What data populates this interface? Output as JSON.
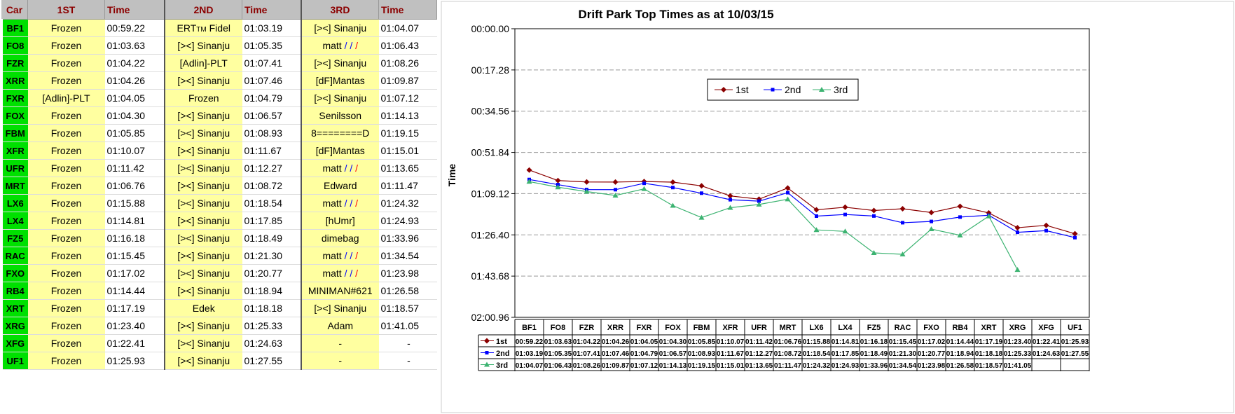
{
  "table": {
    "headers": [
      "Car",
      "1ST",
      "Time",
      "2ND",
      "Time",
      "3RD",
      "Time"
    ],
    "rows": [
      [
        "BF1",
        "Frozen",
        "00:59.22",
        "ERT™ Fidel",
        "01:03.19",
        "[><] Sinanju",
        "01:04.07"
      ],
      [
        "FO8",
        "Frozen",
        "01:03.63",
        "[><] Sinanju",
        "01:05.35",
        "matt ///",
        "01:06.43"
      ],
      [
        "FZR",
        "Frozen",
        "01:04.22",
        "[Adlin]-PLT",
        "01:07.41",
        "[><] Sinanju",
        "01:08.26"
      ],
      [
        "XRR",
        "Frozen",
        "01:04.26",
        "[><] Sinanju",
        "01:07.46",
        "[dF]Mantas",
        "01:09.87"
      ],
      [
        "FXR",
        "[Adlin]-PLT",
        "01:04.05",
        "Frozen",
        "01:04.79",
        "[><] Sinanju",
        "01:07.12"
      ],
      [
        "FOX",
        "Frozen",
        "01:04.30",
        "[><] Sinanju",
        "01:06.57",
        "Senilsson",
        "01:14.13"
      ],
      [
        "FBM",
        "Frozen",
        "01:05.85",
        "[><] Sinanju",
        "01:08.93",
        "8========D",
        "01:19.15"
      ],
      [
        "XFR",
        "Frozen",
        "01:10.07",
        "[><] Sinanju",
        "01:11.67",
        "[dF]Mantas",
        "01:15.01"
      ],
      [
        "UFR",
        "Frozen",
        "01:11.42",
        "[><] Sinanju",
        "01:12.27",
        "matt ///",
        "01:13.65"
      ],
      [
        "MRT",
        "Frozen",
        "01:06.76",
        "[><] Sinanju",
        "01:08.72",
        "Edward",
        "01:11.47"
      ],
      [
        "LX6",
        "Frozen",
        "01:15.88",
        "[><] Sinanju",
        "01:18.54",
        "matt ///",
        "01:24.32"
      ],
      [
        "LX4",
        "Frozen",
        "01:14.81",
        "[><] Sinanju",
        "01:17.85",
        "[hUmr]",
        "01:24.93"
      ],
      [
        "FZ5",
        "Frozen",
        "01:16.18",
        "[><] Sinanju",
        "01:18.49",
        "dimebag",
        "01:33.96"
      ],
      [
        "RAC",
        "Frozen",
        "01:15.45",
        "[><] Sinanju",
        "01:21.30",
        "matt ///",
        "01:34.54"
      ],
      [
        "FXO",
        "Frozen",
        "01:17.02",
        "[><] Sinanju",
        "01:20.77",
        "matt ///",
        "01:23.98"
      ],
      [
        "RB4",
        "Frozen",
        "01:14.44",
        "[><] Sinanju",
        "01:18.94",
        "MINIMAN#621",
        "01:26.58"
      ],
      [
        "XRT",
        "Frozen",
        "01:17.19",
        "Edek",
        "01:18.18",
        "[><] Sinanju",
        "01:18.57"
      ],
      [
        "XRG",
        "Frozen",
        "01:23.40",
        "[><] Sinanju",
        "01:25.33",
        "Adam",
        "01:41.05"
      ],
      [
        "XFG",
        "Frozen",
        "01:22.41",
        "[><] Sinanju",
        "01:24.63",
        "-",
        "-"
      ],
      [
        "UF1",
        "Frozen",
        "01:25.93",
        "[><] Sinanju",
        "01:27.55",
        "-",
        "-"
      ]
    ]
  },
  "chart_data": {
    "type": "line",
    "title": "Drift Park Top Times as at 10/03/15",
    "ylabel": "Time",
    "ylim": [
      0,
      120.96
    ],
    "y_inverted": true,
    "yticks": [
      "00:00.00",
      "00:17.28",
      "00:34.56",
      "00:51.84",
      "01:09.12",
      "01:26.40",
      "01:43.68",
      "02:00.96"
    ],
    "categories": [
      "BF1",
      "FO8",
      "FZR",
      "XRR",
      "FXR",
      "FOX",
      "FBM",
      "XFR",
      "UFR",
      "MRT",
      "LX6",
      "LX4",
      "FZ5",
      "RAC",
      "FXO",
      "RB4",
      "XRT",
      "XRG",
      "XFG",
      "UF1"
    ],
    "legend_position": "top-center",
    "series": [
      {
        "name": "1st",
        "color": "#8b0000",
        "marker": "diamond",
        "labels": [
          "00:59.22",
          "01:03.63",
          "01:04.22",
          "01:04.26",
          "01:04.05",
          "01:04.30",
          "01:05.85",
          "01:10.07",
          "01:11.42",
          "01:06.76",
          "01:15.88",
          "01:14.81",
          "01:16.18",
          "01:15.45",
          "01:17.02",
          "01:14.44",
          "01:17.19",
          "01:23.40",
          "01:22.41",
          "01:25.93"
        ],
        "values": [
          59.22,
          63.63,
          64.22,
          64.26,
          64.05,
          64.3,
          65.85,
          70.07,
          71.42,
          66.76,
          75.88,
          74.81,
          76.18,
          75.45,
          77.02,
          74.44,
          77.19,
          83.4,
          82.41,
          85.93
        ]
      },
      {
        "name": "2nd",
        "color": "#0000ff",
        "marker": "square",
        "labels": [
          "01:03.19",
          "01:05.35",
          "01:07.41",
          "01:07.46",
          "01:04.79",
          "01:06.57",
          "01:08.93",
          "01:11.67",
          "01:12.27",
          "01:08.72",
          "01:18.54",
          "01:17.85",
          "01:18.49",
          "01:21.30",
          "01:20.77",
          "01:18.94",
          "01:18.18",
          "01:25.33",
          "01:24.63",
          "01:27.55"
        ],
        "values": [
          63.19,
          65.35,
          67.41,
          67.46,
          64.79,
          66.57,
          68.93,
          71.67,
          72.27,
          68.72,
          78.54,
          77.85,
          78.49,
          81.3,
          80.77,
          78.94,
          78.18,
          85.33,
          84.63,
          87.55
        ]
      },
      {
        "name": "3rd",
        "color": "#3cb371",
        "marker": "triangle",
        "labels": [
          "01:04.07",
          "01:06.43",
          "01:08.26",
          "01:09.87",
          "01:07.12",
          "01:14.13",
          "01:19.15",
          "01:15.01",
          "01:13.65",
          "01:11.47",
          "01:24.32",
          "01:24.93",
          "01:33.96",
          "01:34.54",
          "01:23.98",
          "01:26.58",
          "01:18.57",
          "01:41.05",
          "",
          ""
        ],
        "values": [
          64.07,
          66.43,
          68.26,
          69.87,
          67.12,
          74.13,
          79.15,
          75.01,
          73.65,
          71.47,
          84.32,
          84.93,
          93.96,
          94.54,
          83.98,
          86.58,
          78.57,
          101.05,
          null,
          null
        ]
      }
    ]
  }
}
